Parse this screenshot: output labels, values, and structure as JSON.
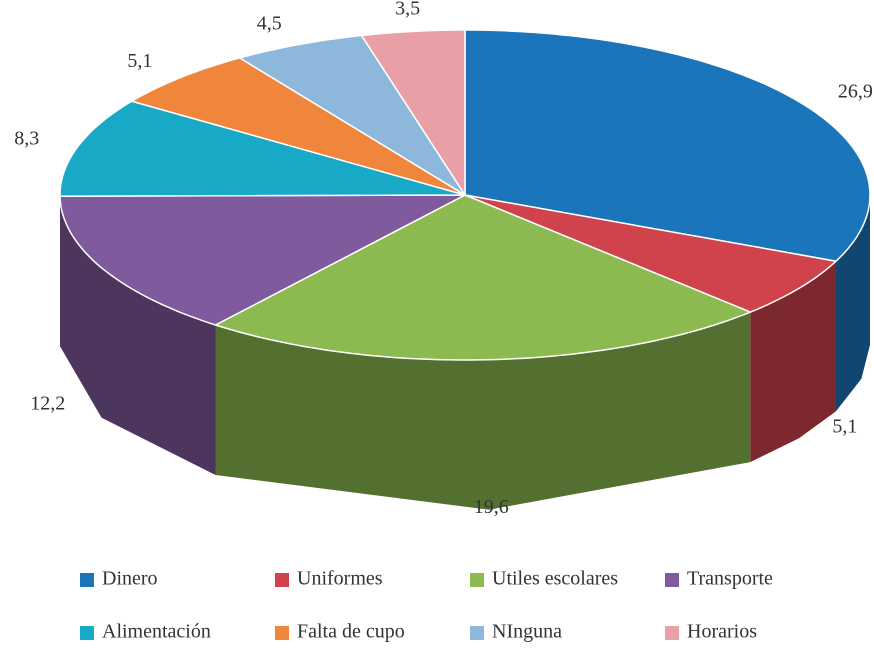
{
  "chart_data": {
    "type": "pie",
    "3d": true,
    "categories": [
      "Dinero",
      "Uniformes",
      "Utiles escolares",
      "Transporte",
      "Alimentación",
      "Falta de cupo",
      "NInguna",
      "Horarios"
    ],
    "values": [
      26.9,
      5.1,
      19.6,
      12.2,
      8.3,
      5.1,
      4.5,
      3.5
    ],
    "value_labels": [
      "26,9",
      "5,1",
      "19,6",
      "12,2",
      "8,3",
      "5,1",
      "4,5",
      "3,5"
    ],
    "colors": [
      "#1b75bb",
      "#d0434c",
      "#8cba50",
      "#7f5a9d",
      "#18a9c7",
      "#f0863c",
      "#8db8dc",
      "#e8a0a6"
    ],
    "legend": "bottom"
  }
}
